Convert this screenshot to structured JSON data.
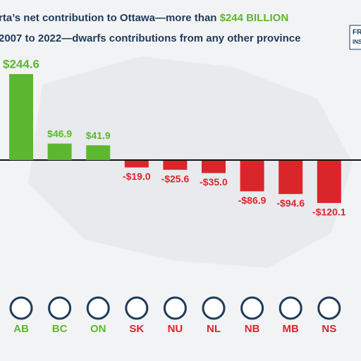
{
  "chart_data": {
    "type": "bar",
    "title": [
      "rta’s net contribution to Ottawa—more than ",
      "$244 BILLION"
    ],
    "subtitle": "2007 to 2022—dwarfs contributions from any other province",
    "logo": [
      "FR",
      "INS"
    ],
    "categories": [
      "AB",
      "BC",
      "ON",
      "SK",
      "NU",
      "NL",
      "NB",
      "MB",
      "NS"
    ],
    "values": [
      244.6,
      46.9,
      41.9,
      -19.0,
      -25.6,
      -35.0,
      -86.9,
      -94.6,
      -120.1
    ],
    "value_labels": [
      "$244.6",
      "$46.9",
      "$41.9",
      "-$19.0",
      "-$25.6",
      "-$35.0",
      "-$86.9",
      "-$94.6",
      "-$120.1"
    ],
    "positive_color": "#5cb82e",
    "negative_color": "#d9262b"
  }
}
